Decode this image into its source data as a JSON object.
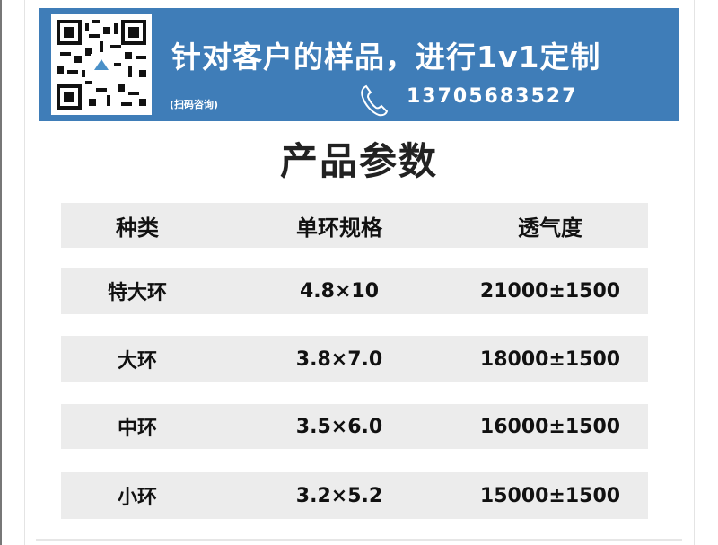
{
  "banner": {
    "headline": "针对客户的样品，进行1v1定制",
    "scan_hint": "(扫码咨询)",
    "phone": "13705683527",
    "background": "#3f7db8",
    "icons": [
      "qr-code-icon",
      "phone-icon"
    ]
  },
  "title": "产品参数",
  "table": {
    "headers": [
      "种类",
      "单环规格",
      "透气度"
    ],
    "rows": [
      [
        "特大环",
        "4.8×10",
        "21000±1500"
      ],
      [
        "大环",
        "3.8×7.0",
        "18000±1500"
      ],
      [
        "中环",
        "3.5×6.0",
        "16000±1500"
      ],
      [
        "小环",
        "3.2×5.2",
        "15000±1500"
      ]
    ],
    "row_background": "#ececec"
  }
}
